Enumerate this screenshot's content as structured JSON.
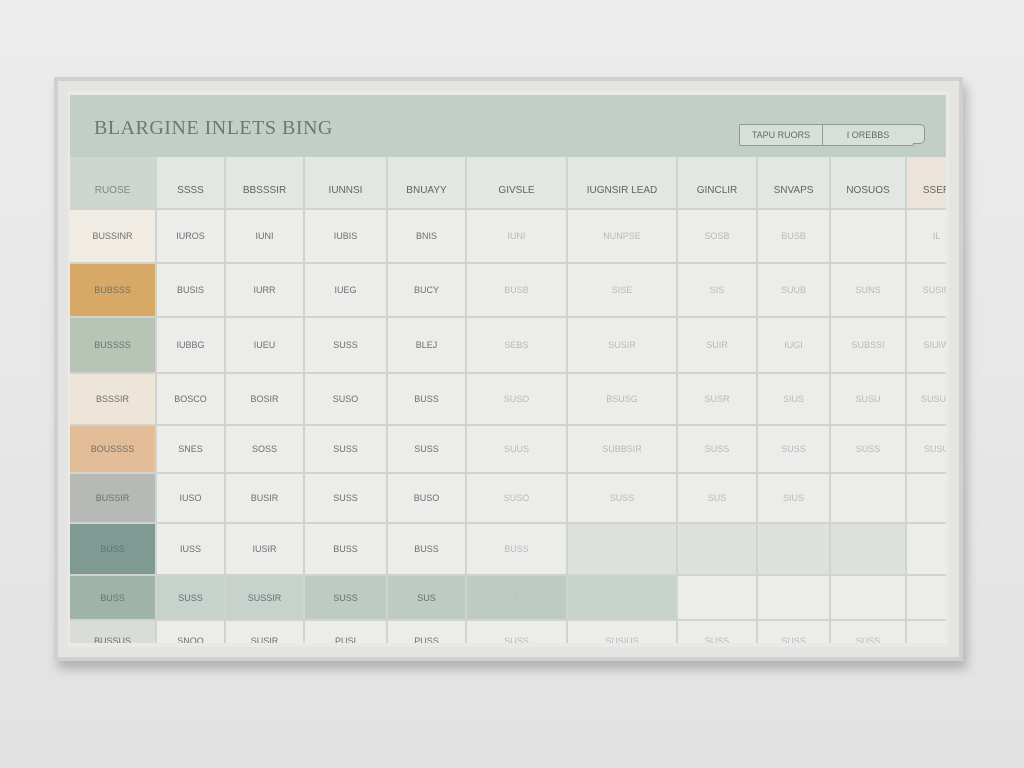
{
  "app": {
    "title": "BLARGINE INLETS BING",
    "header_buttons": [
      "TAPU RUORS",
      "I OREBBS"
    ]
  },
  "table": {
    "columns": [
      "RUOSE",
      "SSSS",
      "BBSSSIR",
      "IUNNSI",
      "BNUAYY",
      "GIVSLE",
      "IUGNSIR LEAD",
      "GINCLIR",
      "SNVAPS",
      "NOSUOS",
      "SSER"
    ],
    "rows": [
      {
        "label": "BUSSINR",
        "fill": "#f1ece3",
        "cells": [
          "IUROS",
          "IUNI",
          "IUBIS",
          "BNIS",
          "IUNI",
          "NUNPSE",
          "SOSB",
          "BUSB",
          "",
          "IL"
        ],
        "colored": {
          "10": "#e6e2da"
        }
      },
      {
        "label": "BUBSSS",
        "fill": "#d8a966",
        "cells": [
          "BUSIS",
          "IURR",
          "IUEG",
          "BUCY",
          "BUSB",
          "SISE",
          "SIS",
          "SUUB",
          "SUNS",
          "SUSIR"
        ],
        "colored": {
          "10": "#d7b38f"
        }
      },
      {
        "label": "BUSSSS",
        "fill": "#b7c4b6",
        "cells": [
          "IUBBG",
          "IUEU",
          "SUSS",
          "BLEJ",
          "SEBS",
          "SUSIR",
          "SUIR",
          "IUGI",
          "SUBSSI",
          "SIUIW"
        ],
        "colored": {
          "10": "#dcc2a5"
        }
      },
      {
        "label": "BSSSIR",
        "fill": "#ede5d8",
        "cells": [
          "BOSCO",
          "BOSIR",
          "SUSO",
          "BUSS",
          "SUSO",
          "BSUSG",
          "SUSR",
          "SIUS",
          "SUSU",
          "SUSUS"
        ],
        "colored": {
          "10": "#e6d1ba"
        }
      },
      {
        "label": "BOUSSSS",
        "fill": "#e2bd98",
        "cells": [
          "SNES",
          "SOSS",
          "SUSS",
          "SUSS",
          "SUUS",
          "SUBBSIR",
          "SUSS",
          "SUSS",
          "SUSS",
          "SUSU"
        ],
        "colored": {
          "10": "#e0ccb6"
        }
      },
      {
        "label": "BUSSIR",
        "fill": "#b6b9b5",
        "cells": [
          "IUSO",
          "BUSIR",
          "SUSS",
          "BUSO",
          "SUSO",
          "SUSS",
          "SUS",
          "SIUS",
          "",
          ""
        ],
        "colored": {}
      },
      {
        "label": "BUSS",
        "fill": "#7e9a93",
        "cells": [
          "IUSS",
          "IUSIR",
          "BUSS",
          "BUSS",
          "BUSS",
          "",
          "",
          "",
          "",
          ""
        ],
        "colored": {
          "5": "#dde1de",
          "6": "#dde1de",
          "7": "#dde1de",
          "8": "#dde1de"
        }
      },
      {
        "label": "BUSS",
        "fill": "#9fb3ab",
        "cells": [
          "SUSS",
          "SUSSIR",
          "SUSS",
          "SUS",
          "I",
          "",
          "",
          "",
          "",
          ""
        ],
        "colored": {
          "0": "#c7d2cd",
          "1": "#c7d2cd",
          "2": "#bdcbc4",
          "3": "#bdcbc4",
          "4": "#bdcbc4",
          "5": "#c7d2cd"
        }
      },
      {
        "label": "BUSSUS",
        "fill": "#dadcd9",
        "cells": [
          "SNOO",
          "SUSIR",
          "PUSI",
          "PUSS",
          "SUSS",
          "SUSIUS",
          "SUSS",
          "SUSS",
          "SUSS",
          ""
        ],
        "colored": {}
      }
    ]
  },
  "colors": {
    "header_bg": "#c2cfc8",
    "accent_orange": "#d8a966",
    "accent_teal": "#7e9a93"
  }
}
